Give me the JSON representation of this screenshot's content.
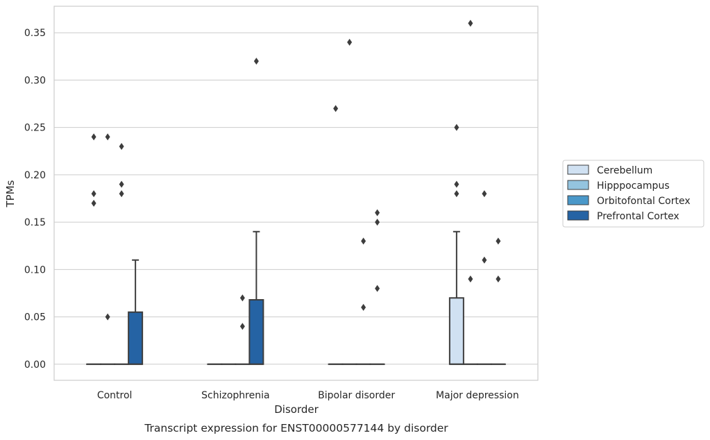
{
  "caption": "Transcript expression for ENST00000577144 by disorder",
  "colors": {
    "Cerebellum": "#d0e1f2",
    "Hipppocampus": "#94c4df",
    "Orbitofontal Cortex": "#4a98c9",
    "Prefrontal Cortex": "#2563a4",
    "grid": "#cccccc",
    "axis": "#cccccc",
    "line": "#3d3d3d"
  },
  "chart_data": {
    "type": "box",
    "xlabel": "Disorder",
    "ylabel": "TPMs",
    "ylim": [
      -0.017,
      0.378
    ],
    "yticks": [
      0.0,
      0.05,
      0.1,
      0.15,
      0.2,
      0.25,
      0.3,
      0.35
    ],
    "ytick_labels": [
      "0.00",
      "0.05",
      "0.10",
      "0.15",
      "0.20",
      "0.25",
      "0.30",
      "0.35"
    ],
    "grid": "horizontal",
    "legend_position": "right",
    "categories": [
      "Control",
      "Schizophrenia",
      "Bipolar disorder",
      "Major depression"
    ],
    "hues": [
      "Cerebellum",
      "Hipppocampus",
      "Orbitofontal Cortex",
      "Prefrontal Cortex"
    ],
    "boxes": [
      {
        "category": "Control",
        "hue": "Cerebellum",
        "q1": 0,
        "median": 0,
        "q3": 0,
        "whisker_low": 0,
        "whisker_high": 0,
        "outliers": [
          0.17,
          0.18,
          0.24
        ]
      },
      {
        "category": "Control",
        "hue": "Hipppocampus",
        "q1": 0,
        "median": 0,
        "q3": 0,
        "whisker_low": 0,
        "whisker_high": 0,
        "outliers": [
          0.05,
          0.24
        ]
      },
      {
        "category": "Control",
        "hue": "Orbitofontal Cortex",
        "q1": 0,
        "median": 0,
        "q3": 0,
        "whisker_low": 0,
        "whisker_high": 0,
        "outliers": [
          0.18,
          0.19,
          0.23
        ]
      },
      {
        "category": "Control",
        "hue": "Prefrontal Cortex",
        "q1": 0,
        "median": 0,
        "q3": 0.055,
        "whisker_low": 0,
        "whisker_high": 0.11,
        "outliers": []
      },
      {
        "category": "Schizophrenia",
        "hue": "Cerebellum",
        "q1": 0,
        "median": 0,
        "q3": 0,
        "whisker_low": 0,
        "whisker_high": 0,
        "outliers": []
      },
      {
        "category": "Schizophrenia",
        "hue": "Hipppocampus",
        "q1": 0,
        "median": 0,
        "q3": 0,
        "whisker_low": 0,
        "whisker_high": 0,
        "outliers": []
      },
      {
        "category": "Schizophrenia",
        "hue": "Orbitofontal Cortex",
        "q1": 0,
        "median": 0,
        "q3": 0,
        "whisker_low": 0,
        "whisker_high": 0,
        "outliers": [
          0.04,
          0.07
        ]
      },
      {
        "category": "Schizophrenia",
        "hue": "Prefrontal Cortex",
        "q1": 0,
        "median": 0,
        "q3": 0.068,
        "whisker_low": 0,
        "whisker_high": 0.14,
        "outliers": [
          0.32
        ]
      },
      {
        "category": "Bipolar disorder",
        "hue": "Cerebellum",
        "q1": 0,
        "median": 0,
        "q3": 0,
        "whisker_low": 0,
        "whisker_high": 0,
        "outliers": [
          0.27
        ]
      },
      {
        "category": "Bipolar disorder",
        "hue": "Hipppocampus",
        "q1": 0,
        "median": 0,
        "q3": 0,
        "whisker_low": 0,
        "whisker_high": 0,
        "outliers": [
          0.34
        ]
      },
      {
        "category": "Bipolar disorder",
        "hue": "Orbitofontal Cortex",
        "q1": 0,
        "median": 0,
        "q3": 0,
        "whisker_low": 0,
        "whisker_high": 0,
        "outliers": [
          0.06,
          0.13
        ]
      },
      {
        "category": "Bipolar disorder",
        "hue": "Prefrontal Cortex",
        "q1": 0,
        "median": 0,
        "q3": 0,
        "whisker_low": 0,
        "whisker_high": 0,
        "outliers": [
          0.08,
          0.15,
          0.16
        ]
      },
      {
        "category": "Major depression",
        "hue": "Cerebellum",
        "q1": 0,
        "median": 0,
        "q3": 0.07,
        "whisker_low": 0,
        "whisker_high": 0.14,
        "outliers": [
          0.18,
          0.19,
          0.25
        ]
      },
      {
        "category": "Major depression",
        "hue": "Hipppocampus",
        "q1": 0,
        "median": 0,
        "q3": 0,
        "whisker_low": 0,
        "whisker_high": 0,
        "outliers": [
          0.09,
          0.36
        ]
      },
      {
        "category": "Major depression",
        "hue": "Orbitofontal Cortex",
        "q1": 0,
        "median": 0,
        "q3": 0,
        "whisker_low": 0,
        "whisker_high": 0,
        "outliers": [
          0.11,
          0.18
        ]
      },
      {
        "category": "Major depression",
        "hue": "Prefrontal Cortex",
        "q1": 0,
        "median": 0,
        "q3": 0,
        "whisker_low": 0,
        "whisker_high": 0,
        "outliers": [
          0.09,
          0.13
        ]
      }
    ]
  }
}
